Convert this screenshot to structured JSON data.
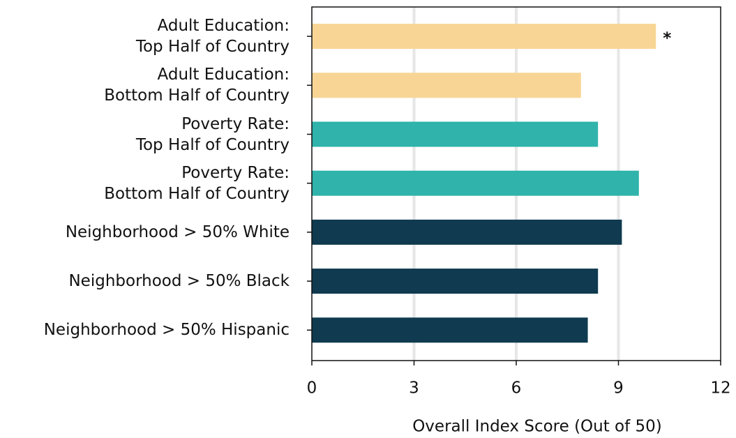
{
  "chart_data": {
    "type": "bar",
    "orientation": "horizontal",
    "categories": [
      "Adult Education:\nTop Half of Country",
      "Adult Education:\nBottom Half of Country",
      "Poverty Rate:\nTop Half of Country",
      "Poverty Rate:\nBottom Half of Country",
      "Neighborhood > 50% White",
      "Neighborhood > 50% Black",
      "Neighborhood > 50% Hispanic"
    ],
    "values": [
      10.1,
      7.9,
      8.4,
      9.6,
      9.1,
      8.4,
      8.1
    ],
    "colors": [
      "#f8d595",
      "#f8d595",
      "#2fb3ab",
      "#2fb3ab",
      "#0f3a4f",
      "#0f3a4f",
      "#0f3a4f"
    ],
    "annotation": "*",
    "x_label": "Overall Index Score (Out of 50)",
    "xlim": [
      0,
      12
    ],
    "xticks": [
      0,
      3,
      6,
      9,
      12
    ],
    "grid": true
  }
}
